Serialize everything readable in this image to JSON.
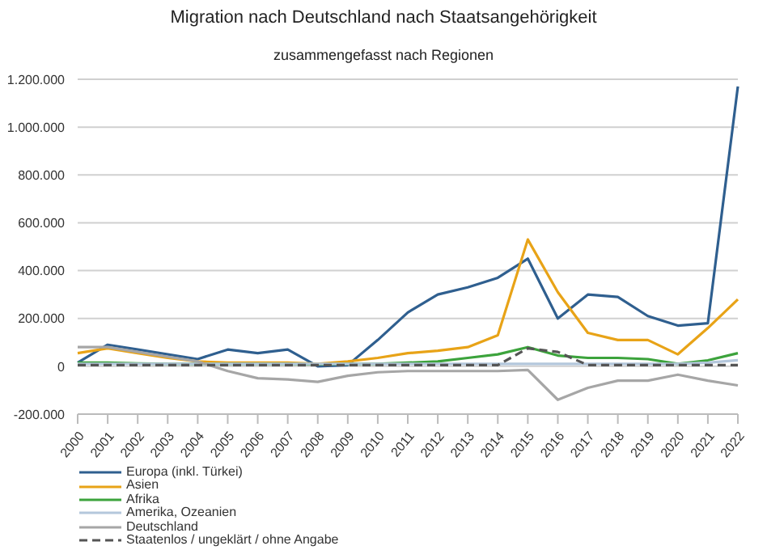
{
  "chart_data": {
    "type": "line",
    "title": "Migration nach Deutschland nach Staatsangehörigkeit",
    "subtitle": "zusammengefasst nach Regionen",
    "categories": [
      "2000",
      "2001",
      "2002",
      "2003",
      "2004",
      "2005",
      "2006",
      "2007",
      "2008",
      "2009",
      "2010",
      "2011",
      "2012",
      "2013",
      "2014",
      "2015",
      "2016",
      "2017",
      "2018",
      "2019",
      "2020",
      "2021",
      "2022"
    ],
    "series": [
      {
        "name": "Europa (inkl. Türkei)",
        "color": "#2f5f8f",
        "values": [
          15000,
          90000,
          70000,
          50000,
          30000,
          70000,
          55000,
          70000,
          0,
          5000,
          110000,
          225000,
          300000,
          330000,
          370000,
          450000,
          200000,
          300000,
          290000,
          210000,
          170000,
          180000,
          1170000
        ]
      },
      {
        "name": "Asien",
        "color": "#e8a317",
        "values": [
          55000,
          75000,
          55000,
          35000,
          20000,
          15000,
          15000,
          15000,
          10000,
          20000,
          35000,
          55000,
          65000,
          80000,
          130000,
          530000,
          310000,
          140000,
          110000,
          110000,
          50000,
          160000,
          280000
        ]
      },
      {
        "name": "Afrika",
        "color": "#3ca33c",
        "values": [
          15000,
          15000,
          12000,
          10000,
          10000,
          10000,
          10000,
          10000,
          8000,
          10000,
          10000,
          15000,
          20000,
          35000,
          50000,
          80000,
          45000,
          35000,
          35000,
          30000,
          10000,
          25000,
          55000
        ]
      },
      {
        "name": "Amerika, Ozeanien",
        "color": "#b4c7dc",
        "values": [
          10000,
          10000,
          10000,
          10000,
          10000,
          10000,
          10000,
          10000,
          10000,
          10000,
          10000,
          10000,
          10000,
          10000,
          10000,
          10000,
          10000,
          10000,
          10000,
          10000,
          10000,
          15000,
          25000
        ]
      },
      {
        "name": "Deutschland",
        "color": "#a6a6a6",
        "values": [
          80000,
          80000,
          60000,
          40000,
          20000,
          -20000,
          -50000,
          -55000,
          -65000,
          -40000,
          -25000,
          -20000,
          -20000,
          -20000,
          -20000,
          -15000,
          -140000,
          -90000,
          -60000,
          -60000,
          -35000,
          -60000,
          -80000
        ]
      },
      {
        "name": "Staatenlos / ungeklärt / ohne Angabe",
        "color": "#555555",
        "line_style": "dashed",
        "values": [
          5000,
          5000,
          5000,
          5000,
          5000,
          5000,
          5000,
          5000,
          5000,
          5000,
          5000,
          5000,
          5000,
          5000,
          5000,
          75000,
          60000,
          5000,
          5000,
          5000,
          5000,
          5000,
          5000
        ]
      }
    ],
    "ylim": [
      -200000,
      1200000
    ],
    "yticks": [
      {
        "value": -200000,
        "label": "-200.000"
      },
      0,
      {
        "value": 200000,
        "label": "200.000"
      },
      {
        "value": 400000,
        "label": "400.000"
      },
      {
        "value": 600000,
        "label": "600.000"
      },
      {
        "value": 800000,
        "label": "800.000"
      },
      {
        "value": 1000000,
        "label": "1.000.000"
      },
      {
        "value": 1200000,
        "label": "1.200.000"
      }
    ],
    "grid": "y",
    "legend": "bottom",
    "marker": "none",
    "line_style": "solid"
  }
}
